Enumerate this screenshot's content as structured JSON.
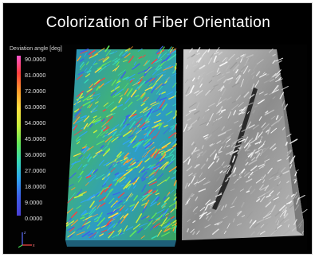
{
  "title": "Colorization of Fiber Orientation",
  "legend": {
    "title": "Deviation angle [deg]",
    "ticks": [
      "90.0000",
      "81.0000",
      "72.0000",
      "63.0000",
      "54.0000",
      "45.0000",
      "36.0000",
      "27.0000",
      "18.0000",
      "9.0000",
      "0.0000"
    ]
  },
  "colors": {
    "background": "#000000",
    "scale_top": "#ff3e3e",
    "scale_mid": "#63e85a",
    "scale_bottom": "#4a3fd6",
    "gray_render": "#d9d9d9"
  }
}
